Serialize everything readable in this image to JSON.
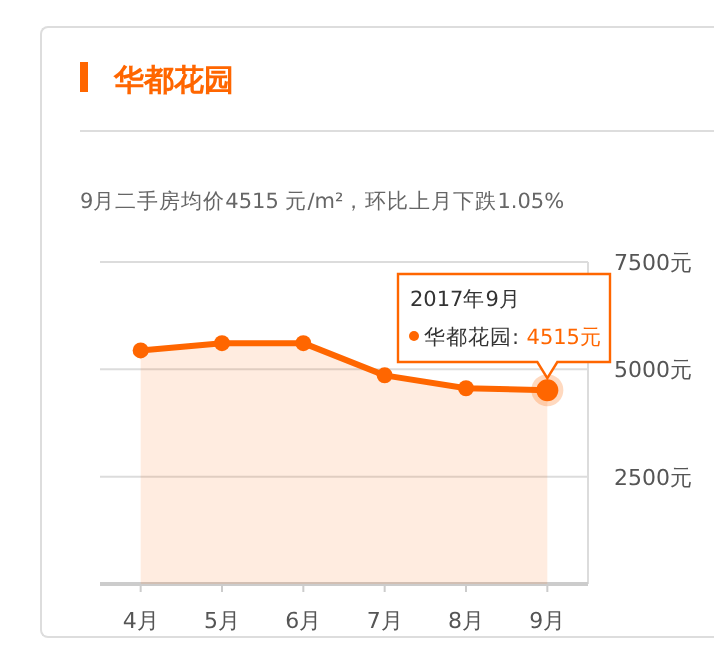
{
  "chart_data": {
    "type": "area",
    "title": "华都花园",
    "subtitle": "9月二手房均价4515 元/m²，环比上月下跌1.05%",
    "categories": [
      "4月",
      "5月",
      "6月",
      "7月",
      "8月",
      "9月"
    ],
    "series": [
      {
        "color": "#ff6600",
        "values": [
          5440,
          5610,
          5610,
          4860,
          4560,
          4515
        ],
        "value_labels": [
          null,
          null,
          null,
          null,
          null,
          "4515元"
        ]
      }
    ],
    "ylim": [
      0,
      7500
    ],
    "yticks": [
      {
        "value": 0,
        "label": null
      },
      {
        "value": 2500,
        "label": "2500元"
      },
      {
        "value": 5000,
        "label": "5000元"
      },
      {
        "value": 7500,
        "label": "7500元"
      }
    ],
    "grid": "y",
    "marker": "circle",
    "line_style": "solid",
    "annotations": [
      "2017年9月",
      "华都花园:"
    ]
  }
}
